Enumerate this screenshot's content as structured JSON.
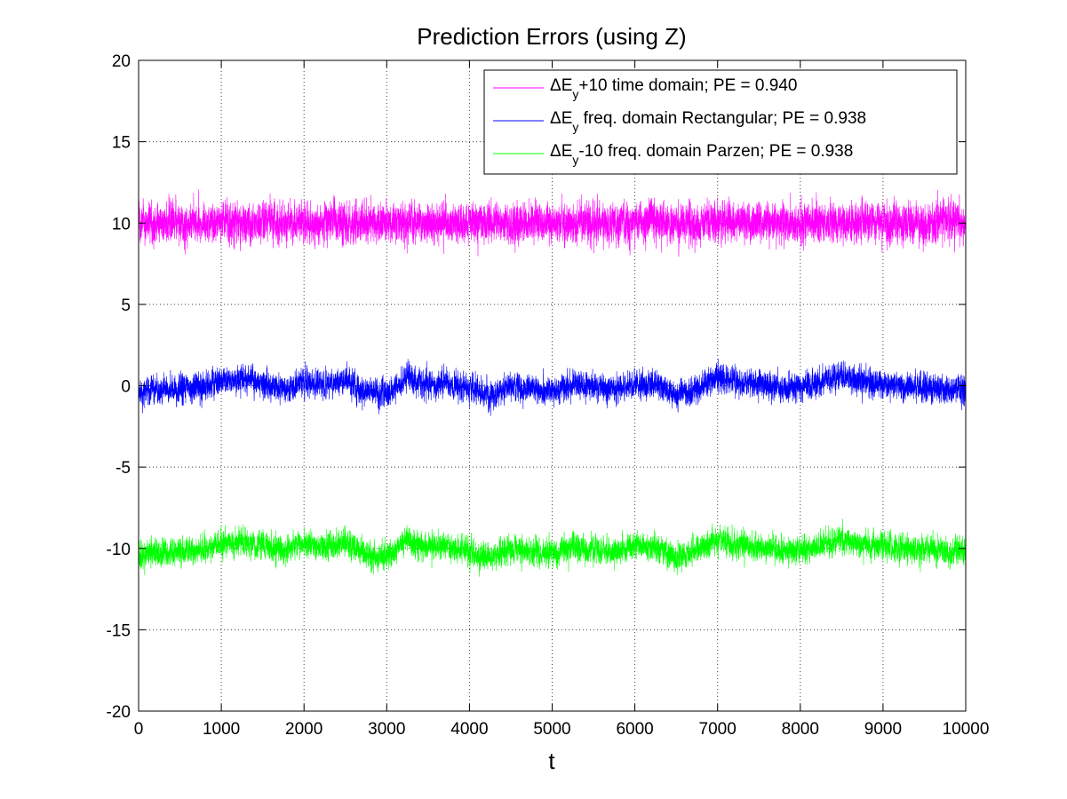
{
  "chart_data": {
    "type": "line",
    "title": "Prediction Errors (using Z)",
    "xlabel": "t",
    "ylabel": "",
    "xlim": [
      0,
      10000
    ],
    "ylim": [
      -20,
      20
    ],
    "xticks": [
      0,
      1000,
      2000,
      3000,
      4000,
      5000,
      6000,
      7000,
      8000,
      9000,
      10000
    ],
    "xtick_labels": [
      "0",
      "1000",
      "2000",
      "3000",
      "4000",
      "5000",
      "6000",
      "7000",
      "8000",
      "9000",
      "10000"
    ],
    "yticks": [
      -20,
      -15,
      -10,
      -5,
      0,
      5,
      10,
      15,
      20
    ],
    "ytick_labels": [
      "-20",
      "-15",
      "-10",
      "-5",
      "0",
      "5",
      "10",
      "15",
      "20"
    ],
    "grid": true,
    "legend_position": "top-right",
    "series": [
      {
        "name": "ΔE_y+10 time domain; PE = 0.940",
        "legend": {
          "prefix": "ΔE",
          "sub": "y",
          "suffix": "+10 time domain; PE = 0.940"
        },
        "color": "#ff00ff",
        "baseline": 10,
        "noise_amplitude": 1.1,
        "trend_x": [
          0,
          500,
          1000,
          1500,
          2000,
          2500,
          3000,
          3500,
          4000,
          4500,
          5000,
          5500,
          6000,
          6500,
          7000,
          7500,
          8000,
          8500,
          9000,
          9500,
          10000
        ],
        "trend_y": [
          10,
          10,
          10,
          10,
          10,
          10,
          10,
          10,
          10,
          10,
          10,
          10,
          10,
          10,
          10,
          10,
          10,
          10,
          10,
          10,
          10
        ],
        "approx_range": [
          7.8,
          12.4
        ]
      },
      {
        "name": "ΔE_y freq. domain Rectangular; PE = 0.938",
        "legend": {
          "prefix": "ΔE",
          "sub": "y",
          "suffix": " freq. domain Rectangular; PE = 0.938"
        },
        "color": "#0000ff",
        "baseline": 0,
        "noise_amplitude": 0.75,
        "trend_x": [
          0,
          250,
          500,
          750,
          1000,
          1250,
          1500,
          1750,
          2000,
          2250,
          2500,
          2750,
          3000,
          3250,
          3500,
          3750,
          4000,
          4250,
          4500,
          4750,
          5000,
          5250,
          5500,
          5750,
          6000,
          6250,
          6500,
          6750,
          7000,
          7250,
          7500,
          7750,
          8000,
          8250,
          8500,
          8750,
          9000,
          9250,
          9500,
          9750,
          10000
        ],
        "trend_y": [
          -0.4,
          -0.3,
          -0.2,
          -0.1,
          0.3,
          0.4,
          0.2,
          -0.2,
          0.3,
          0.0,
          0.4,
          -0.4,
          -0.5,
          0.5,
          0.1,
          0.1,
          -0.2,
          -0.6,
          0.0,
          -0.2,
          -0.3,
          0.1,
          -0.1,
          -0.2,
          0.1,
          0.1,
          -0.6,
          -0.2,
          0.5,
          0.2,
          0.1,
          -0.2,
          -0.1,
          0.2,
          0.6,
          0.2,
          0.1,
          -0.1,
          -0.1,
          -0.2,
          -0.2
        ],
        "approx_range": [
          -2.7,
          2.3
        ]
      },
      {
        "name": "ΔE_y-10 freq. domain Parzen; PE = 0.938",
        "legend": {
          "prefix": "ΔE",
          "sub": "y",
          "suffix": "-10 freq. domain Parzen; PE = 0.938"
        },
        "color": "#00ff00",
        "baseline": -10,
        "noise_amplitude": 0.75,
        "trend_x": [
          0,
          250,
          500,
          750,
          1000,
          1250,
          1500,
          1750,
          2000,
          2250,
          2500,
          2750,
          3000,
          3250,
          3500,
          3750,
          4000,
          4250,
          4500,
          4750,
          5000,
          5250,
          5500,
          5750,
          6000,
          6250,
          6500,
          6750,
          7000,
          7250,
          7500,
          7750,
          8000,
          8250,
          8500,
          8750,
          9000,
          9250,
          9500,
          9750,
          10000
        ],
        "trend_y": [
          -10.4,
          -10.3,
          -10.2,
          -10.1,
          -9.7,
          -9.6,
          -9.8,
          -10.2,
          -9.7,
          -10.0,
          -9.6,
          -10.4,
          -10.5,
          -9.5,
          -9.9,
          -9.9,
          -10.2,
          -10.6,
          -10.0,
          -10.2,
          -10.3,
          -9.9,
          -10.1,
          -10.2,
          -9.9,
          -9.9,
          -10.6,
          -10.2,
          -9.5,
          -9.8,
          -9.9,
          -10.2,
          -10.1,
          -9.8,
          -9.4,
          -9.8,
          -9.9,
          -10.1,
          -10.1,
          -10.2,
          -10.2
        ],
        "approx_range": [
          -12.7,
          -7.6
        ]
      }
    ]
  }
}
